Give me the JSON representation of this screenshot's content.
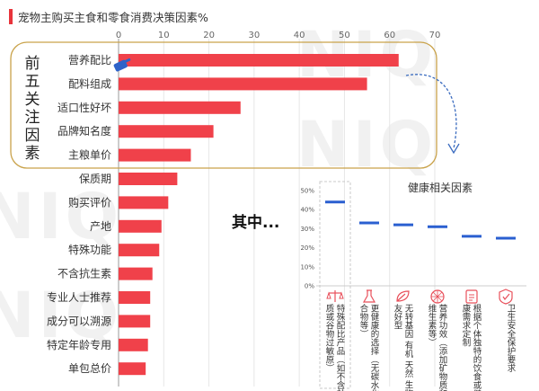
{
  "title": "宠物主购买主食和零食消费决策因素%",
  "colors": {
    "bar": "#f0414a",
    "accent": "#e8343b",
    "bracket": "#c9a24a",
    "inset_line": "#2a5fd0",
    "arrow": "#3a6bbf",
    "icon": "#e8505b"
  },
  "highlight": {
    "text": "前五关注因素",
    "chars": [
      "前",
      "五",
      "关",
      "注",
      "因",
      "素"
    ]
  },
  "annotation": "其中...",
  "watermark": "NIQ",
  "chart_data": [
    {
      "type": "bar",
      "orientation": "horizontal",
      "title": "宠物主购买主食和零食消费决策因素%",
      "categories": [
        "营养配比",
        "配料组成",
        "适口性好坏",
        "品牌知名度",
        "主粮单价",
        "保质期",
        "购买评价",
        "产地",
        "特殊功能",
        "不含抗生素",
        "专业人士推荐",
        "成分可以溯源",
        "特定年龄专用",
        "单包总价"
      ],
      "values": [
        62,
        55,
        27,
        21,
        16,
        13,
        11,
        9.5,
        9,
        7.5,
        7,
        7,
        6.5,
        6
      ],
      "xlim": [
        0,
        70
      ],
      "xticks": [
        0,
        10,
        20,
        30,
        40,
        50,
        60,
        70
      ],
      "grid": true
    },
    {
      "type": "line",
      "title": "健康相关因素",
      "categories": [
        "特殊配比产品（如不含麸质或谷物过敏原）",
        "更健康的选择（无碳水化合物等）",
        "无转基因 有机 天然 生物友好型",
        "营养功效（添加矿物质和维生素等）",
        "根据个体独特的饮食或健康需求定制",
        "卫生安全保护要求"
      ],
      "label_lines": [
        [
          "特殊配比产品（如不含麸",
          "质或谷物过敏原）"
        ],
        [
          "更健康的选择（无碳水化",
          "合物等）"
        ],
        [
          "无转基因 有机 天然 生物",
          "友好型"
        ],
        [
          "营养功效（添加矿物质和",
          "维生素等）"
        ],
        [
          "根据个体独特的饮食或健",
          "康需求定制"
        ],
        [
          "卫生安全保护要求"
        ]
      ],
      "values": [
        44,
        33,
        32,
        31,
        26,
        25
      ],
      "ylim": [
        0,
        50
      ],
      "yticks": [
        "0%",
        "10%",
        "20%",
        "30%",
        "40%",
        "50%"
      ],
      "icons": [
        "scale-icon",
        "flask-icon",
        "leaf-icon",
        "nutrition-wheel-icon",
        "clipboard-icon",
        "shield-check-icon"
      ]
    }
  ]
}
